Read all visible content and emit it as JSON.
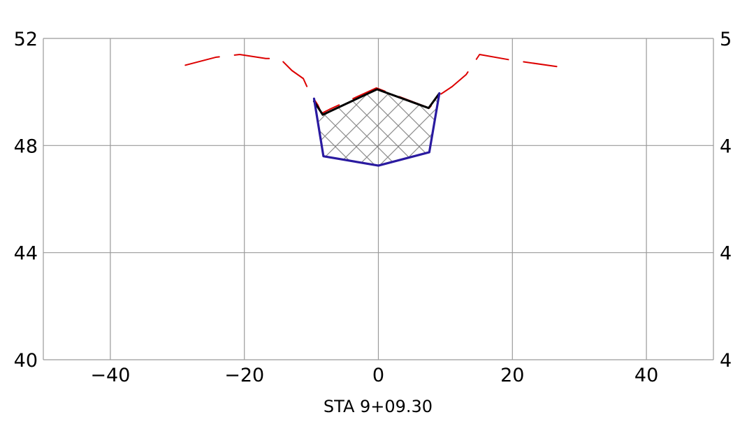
{
  "chart_data": {
    "type": "line",
    "title": "",
    "station_label": "STA  9+09.30",
    "xlabel": "",
    "ylabel": "",
    "xlim": [
      -50,
      50
    ],
    "ylim": [
      40,
      52
    ],
    "x_ticks": [
      -40,
      -20,
      0,
      20,
      40
    ],
    "x_tick_labels": [
      "−40",
      "−20",
      "0",
      "20",
      "40"
    ],
    "y_ticks": [
      40,
      44,
      48,
      52
    ],
    "y_tick_labels": [
      "40",
      "44",
      "48",
      "52"
    ],
    "y_tick_labels_right": [
      "4",
      "4",
      "4",
      "5"
    ],
    "grid": true,
    "series": [
      {
        "color": "#dd0000",
        "style": "dashed",
        "points": [
          [
            -28.8,
            51.0
          ],
          [
            -24.2,
            51.3
          ],
          [
            -20.7,
            51.4
          ],
          [
            -16.8,
            51.25
          ],
          [
            -14.7,
            51.25
          ],
          [
            -12.9,
            50.8
          ],
          [
            -11.2,
            50.5
          ],
          [
            -10.3,
            50.0
          ],
          [
            -9.0,
            49.5
          ],
          [
            -8.5,
            49.2
          ],
          [
            -7.3,
            49.35
          ],
          [
            -0.3,
            50.15
          ],
          [
            7.6,
            49.4
          ],
          [
            9.2,
            49.9
          ],
          [
            11.0,
            50.2
          ],
          [
            13.1,
            50.65
          ],
          [
            15.1,
            51.4
          ],
          [
            19.6,
            51.2
          ],
          [
            26.6,
            50.95
          ]
        ]
      },
      {
        "color": "#000000",
        "style": "solid",
        "points": [
          [
            -9.6,
            49.65
          ],
          [
            -8.3,
            49.15
          ],
          [
            -0.2,
            50.1
          ],
          [
            7.5,
            49.4
          ],
          [
            9.1,
            49.95
          ]
        ]
      },
      {
        "color": "#2a1aa0",
        "style": "solid",
        "points": [
          [
            -9.6,
            49.75
          ],
          [
            -8.2,
            47.6
          ],
          [
            0.0,
            47.25
          ],
          [
            7.6,
            47.75
          ],
          [
            9.1,
            49.95
          ]
        ]
      }
    ],
    "hatch_region": [
      [
        -9.6,
        49.65
      ],
      [
        -8.3,
        49.15
      ],
      [
        -0.2,
        50.1
      ],
      [
        7.5,
        49.4
      ],
      [
        9.1,
        49.95
      ],
      [
        7.6,
        47.75
      ],
      [
        0.0,
        47.25
      ],
      [
        -8.2,
        47.6
      ]
    ],
    "colors": {
      "grid": "#9a9a9a",
      "hatch": "#8c8c8c"
    }
  }
}
